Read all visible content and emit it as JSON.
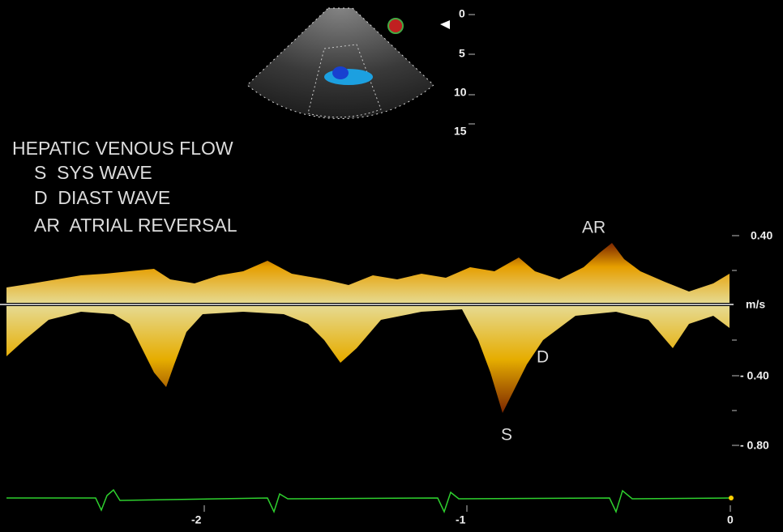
{
  "depth_scale": [
    "0",
    "5",
    "10",
    "15"
  ],
  "legend": {
    "title": "HEPATIC VENOUS FLOW",
    "lines": [
      "S  SYS WAVE",
      "D  DIAST WAVE",
      "AR  ATRIAL REVERSAL"
    ]
  },
  "wave_labels": {
    "ar": "AR",
    "d": "D",
    "s": "S"
  },
  "velocity_scale": {
    "top": "0.40",
    "unit": "m/s",
    "neg1": "- 0.40",
    "neg2": "- 0.80"
  },
  "time_scale": [
    "-2",
    "-1",
    "0"
  ]
}
